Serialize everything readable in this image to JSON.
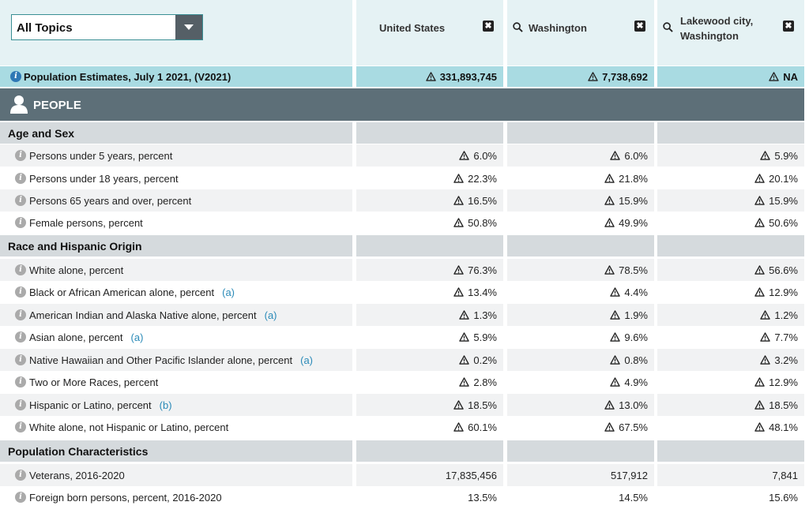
{
  "topics_select": {
    "value": "All Topics"
  },
  "geographies": [
    {
      "name": "United States",
      "has_search": false
    },
    {
      "name": "Washington",
      "has_search": true
    },
    {
      "name_line1": "Lakewood city,",
      "name_line2": "Washington",
      "has_search": true
    }
  ],
  "close_glyph": "✖",
  "population_estimates": {
    "label": "Population Estimates, July 1 2021, (V2021)",
    "values": [
      "331,893,745",
      "7,738,692",
      "NA"
    ]
  },
  "people_section": "PEOPLE",
  "sections": {
    "age_sex": "Age and Sex",
    "race": "Race and Hispanic Origin",
    "pop_char": "Population Characteristics"
  },
  "rows": [
    {
      "label": "Persons under 5 years, percent",
      "footnote": "",
      "values": [
        "6.0%",
        "6.0%",
        "5.9%"
      ]
    },
    {
      "label": "Persons under 18 years, percent",
      "footnote": "",
      "values": [
        "22.3%",
        "21.8%",
        "20.1%"
      ]
    },
    {
      "label": "Persons 65 years and over, percent",
      "footnote": "",
      "values": [
        "16.5%",
        "15.9%",
        "15.9%"
      ]
    },
    {
      "label": "Female persons, percent",
      "footnote": "",
      "values": [
        "50.8%",
        "49.9%",
        "50.6%"
      ]
    },
    {
      "label": "White alone, percent",
      "footnote": "",
      "values": [
        "76.3%",
        "78.5%",
        "56.6%"
      ]
    },
    {
      "label": "Black or African American alone, percent",
      "footnote": "(a)",
      "values": [
        "13.4%",
        "4.4%",
        "12.9%"
      ]
    },
    {
      "label": "American Indian and Alaska Native alone, percent",
      "footnote": "(a)",
      "values": [
        "1.3%",
        "1.9%",
        "1.2%"
      ]
    },
    {
      "label": "Asian alone, percent",
      "footnote": "(a)",
      "values": [
        "5.9%",
        "9.6%",
        "7.7%"
      ]
    },
    {
      "label": "Native Hawaiian and Other Pacific Islander alone, percent",
      "footnote": "(a)",
      "values": [
        "0.2%",
        "0.8%",
        "3.2%"
      ]
    },
    {
      "label": "Two or More Races, percent",
      "footnote": "",
      "values": [
        "2.8%",
        "4.9%",
        "12.9%"
      ]
    },
    {
      "label": "Hispanic or Latino, percent",
      "footnote": "(b)",
      "values": [
        "18.5%",
        "13.0%",
        "18.5%"
      ]
    },
    {
      "label": "White alone, not Hispanic or Latino, percent",
      "footnote": "",
      "values": [
        "60.1%",
        "67.5%",
        "48.1%"
      ]
    },
    {
      "label": "Veterans, 2016-2020",
      "footnote": "",
      "values": [
        "17,835,456",
        "517,912",
        "7,841"
      ]
    },
    {
      "label": "Foreign born persons, percent, 2016-2020",
      "footnote": "",
      "values": [
        "13.5%",
        "14.5%",
        "15.6%"
      ]
    }
  ],
  "icons": {
    "info": "info-icon",
    "warning": "warning-icon",
    "search": "search-icon",
    "close": "close-icon",
    "person": "person-icon"
  },
  "colors": {
    "header_bg": "#e5f2f4",
    "estimate_bg": "#a9dbe2",
    "people_bg": "#5d6f78",
    "section_bg": "#d5dadd",
    "link": "#2a8ab8"
  }
}
